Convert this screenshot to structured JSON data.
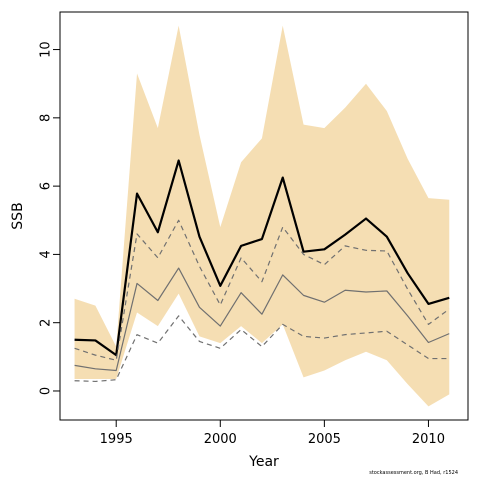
{
  "chart_data": {
    "type": "line",
    "xlabel": "Year",
    "ylabel": "SSB",
    "xlim": [
      1992.3,
      2011.9
    ],
    "ylim": [
      -0.85,
      11.1
    ],
    "xticks": [
      1995,
      2000,
      2005,
      2010
    ],
    "yticks": [
      0,
      2,
      4,
      6,
      8,
      10
    ],
    "grid": false,
    "x": [
      1993,
      1994,
      1995,
      1996,
      1997,
      1998,
      1999,
      2000,
      2001,
      2002,
      2003,
      2004,
      2005,
      2006,
      2007,
      2008,
      2009,
      2010,
      2011
    ],
    "band": {
      "color": "#f5deb3",
      "upper": [
        2.7,
        2.5,
        1.3,
        9.3,
        7.7,
        10.7,
        7.5,
        4.8,
        6.7,
        7.4,
        10.7,
        7.8,
        7.7,
        8.3,
        9.0,
        8.2,
        6.8,
        5.65,
        5.6
      ],
      "lower": [
        0.35,
        0.35,
        0.35,
        2.3,
        1.9,
        2.85,
        1.6,
        1.4,
        1.9,
        1.4,
        1.95,
        0.4,
        0.6,
        0.9,
        1.15,
        0.9,
        0.2,
        -0.45,
        -0.1
      ]
    },
    "series": [
      {
        "style": "solid-thick",
        "color": "#000000",
        "values": [
          1.5,
          1.48,
          1.05,
          5.78,
          4.65,
          6.75,
          4.52,
          3.08,
          4.25,
          4.45,
          6.25,
          4.08,
          4.15,
          4.58,
          5.05,
          4.52,
          3.45,
          2.55,
          2.73
        ]
      },
      {
        "style": "solid-thin",
        "color": "#707070",
        "values": [
          0.75,
          0.65,
          0.6,
          3.15,
          2.65,
          3.6,
          2.45,
          1.9,
          2.88,
          2.25,
          3.4,
          2.8,
          2.6,
          2.95,
          2.9,
          2.93,
          2.2,
          1.42,
          1.68
        ]
      },
      {
        "style": "dashed",
        "color": "#707070",
        "values": [
          1.25,
          1.05,
          0.9,
          4.6,
          3.9,
          5.0,
          3.65,
          2.52,
          3.9,
          3.2,
          4.8,
          4.0,
          3.7,
          4.25,
          4.12,
          4.1,
          2.98,
          1.95,
          2.4
        ]
      },
      {
        "style": "dashed",
        "color": "#707070",
        "values": [
          0.3,
          0.28,
          0.33,
          1.65,
          1.4,
          2.2,
          1.45,
          1.25,
          1.8,
          1.3,
          1.95,
          1.6,
          1.55,
          1.65,
          1.7,
          1.75,
          1.35,
          0.95,
          0.95
        ]
      }
    ]
  },
  "footnote": "stockassessment.org, B Had, r1524"
}
